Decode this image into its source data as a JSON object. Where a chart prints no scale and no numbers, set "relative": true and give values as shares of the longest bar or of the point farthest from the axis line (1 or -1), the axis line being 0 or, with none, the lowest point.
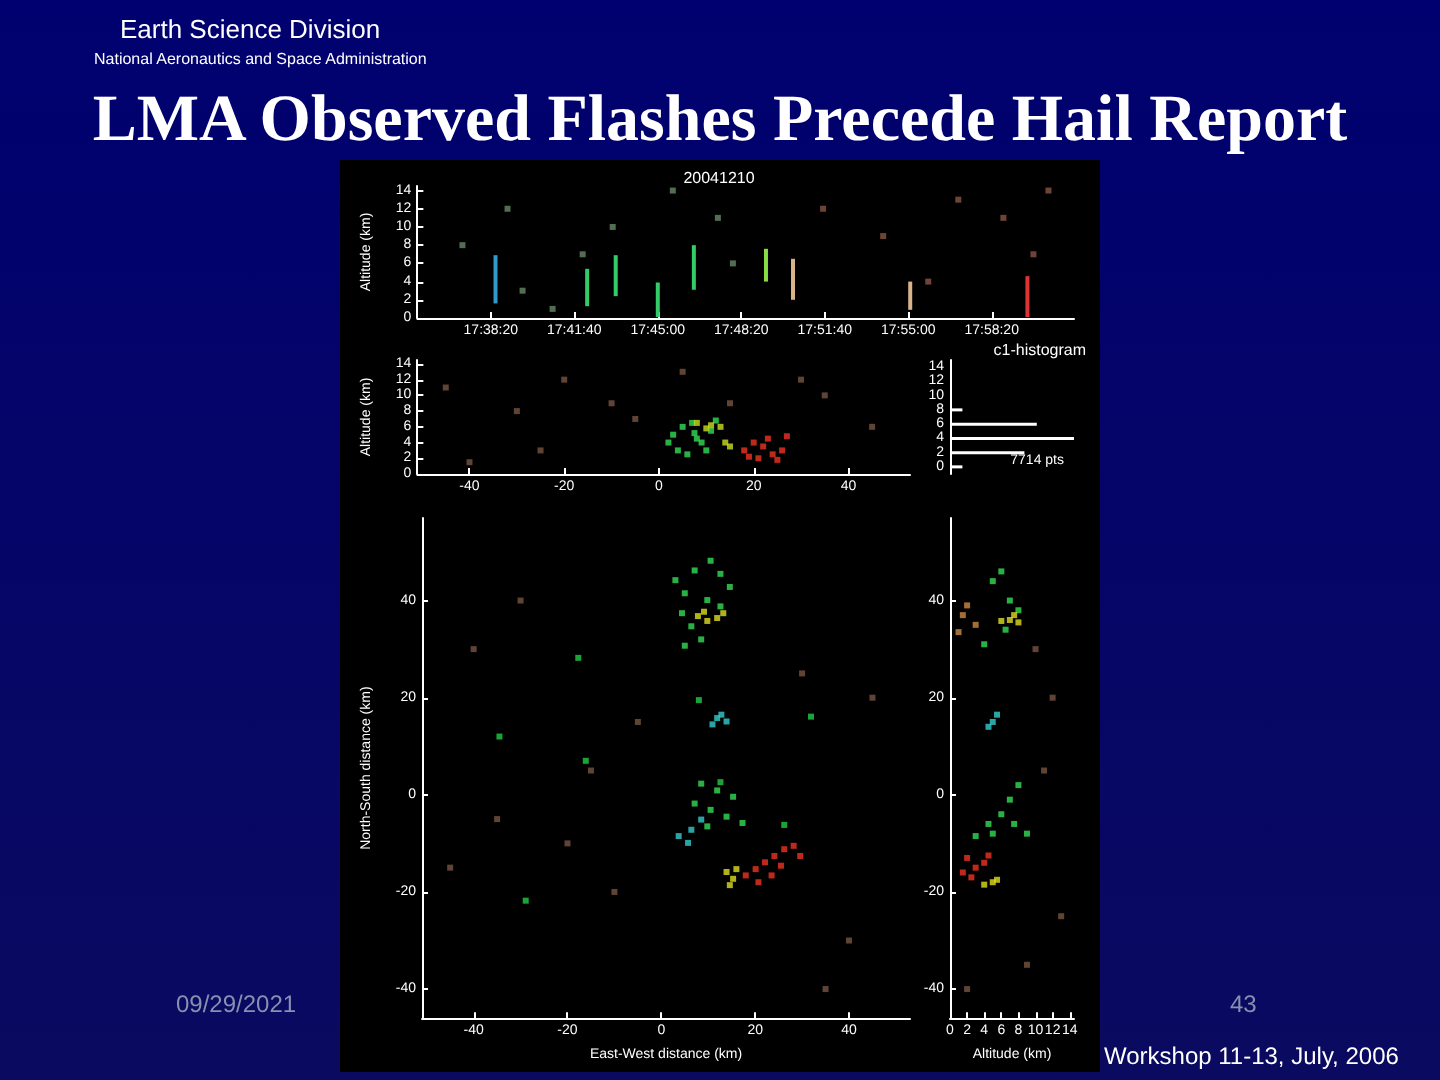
{
  "chart_data": [
    {
      "type": "other",
      "title": "LMA Observed Flashes Precede Hail Report",
      "annotations": [
        "Earth Science Division",
        "National Aeronautics and Space Administration",
        "09/29/2021",
        "43",
        "Workshop 11-13, July, 2006"
      ]
    },
    {
      "type": "scatter",
      "title": "20041210",
      "ylabel": "Altitude (km)",
      "xlim": [
        17.59,
        18.027
      ],
      "ylim": [
        0,
        14.5
      ],
      "xticks": [
        {
          "value": 17.63889,
          "label": "17:38:20"
        },
        {
          "value": 17.69444,
          "label": "17:41:40"
        },
        {
          "value": 17.75,
          "label": "17:45:00"
        },
        {
          "value": 17.80556,
          "label": "17:48:20"
        },
        {
          "value": 17.86111,
          "label": "17:51:40"
        },
        {
          "value": 17.91667,
          "label": "17:55:00"
        },
        {
          "value": 17.97222,
          "label": "17:58:20"
        }
      ],
      "yticks": [
        0,
        2,
        4,
        6,
        8,
        10,
        12,
        14
      ],
      "marker": "square",
      "annotations": [
        "c1-histogram"
      ],
      "series": [
        {
          "type": "bar",
          "x": [
            17.642,
            17.703,
            17.722,
            17.75,
            17.774,
            17.822,
            17.84,
            17.918,
            17.996
          ],
          "base": [
            1.6,
            1.3,
            2.4,
            0.1,
            3.1,
            4.0,
            2.0,
            0.9,
            0.1
          ],
          "values": [
            5.3,
            4.1,
            4.5,
            3.8,
            4.9,
            3.6,
            4.5,
            3.1,
            4.5
          ],
          "colors": [
            "#3399cc",
            "#33cc66",
            "#33cc66",
            "#33cc66",
            "#33cc66",
            "#88dd44",
            "#d9b38c",
            "#d9b38c",
            "#dd3333"
          ]
        },
        {
          "type": "scatter",
          "color": "#668866",
          "x": [
            17.62,
            17.65,
            17.68,
            17.72,
            17.76,
            17.8,
            17.66,
            17.7,
            17.79
          ],
          "values": [
            8,
            12,
            1,
            10,
            14,
            6,
            3,
            7,
            11
          ]
        },
        {
          "type": "scatter",
          "color": "#885544",
          "x": [
            17.86,
            17.9,
            17.95,
            17.98,
            18.0,
            17.93,
            18.01
          ],
          "values": [
            12,
            9,
            13,
            11,
            7,
            4,
            14
          ]
        }
      ]
    },
    {
      "type": "scatter",
      "ylabel": "Altitude (km)",
      "xlim": [
        -51,
        53
      ],
      "ylim": [
        0,
        14.5
      ],
      "xticks": [
        -40,
        -20,
        0,
        20,
        40
      ],
      "yticks": [
        0,
        2,
        4,
        6,
        8,
        10,
        12,
        14
      ],
      "marker": "square",
      "series": [
        {
          "color": "#775544",
          "x": [
            -40,
            -30,
            -20,
            -10,
            -25,
            35,
            45,
            -45,
            5,
            30,
            -5,
            15
          ],
          "values": [
            1.5,
            8,
            12,
            9,
            3,
            10,
            6,
            11,
            13,
            12,
            7,
            9
          ]
        },
        {
          "color": "#33dd55",
          "x": [
            3,
            5,
            7,
            9,
            11,
            4,
            6,
            8,
            12,
            10,
            2,
            7.5
          ],
          "values": [
            5,
            6,
            6.5,
            4,
            5.5,
            3,
            2.5,
            4.5,
            6.8,
            3,
            4,
            5.2
          ]
        },
        {
          "color": "#ccdd22",
          "x": [
            8,
            11,
            13,
            14,
            15,
            10
          ],
          "values": [
            6.5,
            6.2,
            6,
            4,
            3.5,
            5.8
          ]
        },
        {
          "color": "#ee3322",
          "x": [
            18,
            20,
            22,
            24,
            26,
            21,
            23,
            27,
            19,
            25
          ],
          "values": [
            3,
            4,
            3.5,
            2.5,
            3,
            2,
            4.5,
            4.8,
            2.2,
            1.8
          ]
        }
      ]
    },
    {
      "type": "bar",
      "orientation": "horizontal",
      "relative": true,
      "categories": [
        "14",
        "12",
        "10",
        "8",
        "6",
        "4",
        "2",
        "0"
      ],
      "values": [
        0,
        0,
        0,
        0.1,
        0.7,
        1,
        0.6,
        0.1
      ],
      "color": "#ffffff",
      "annotations": [
        "7714 pts"
      ]
    },
    {
      "type": "scatter",
      "xlabel": "East-West distance (km)",
      "ylabel": "North-South distance (km)",
      "xlim": [
        -51,
        53
      ],
      "ylim": [
        -46,
        57
      ],
      "xticks": [
        -40,
        -20,
        0,
        20,
        40
      ],
      "yticks": [
        -40,
        -20,
        0,
        20,
        40
      ],
      "marker": "square",
      "series": [
        {
          "color": "#775544",
          "x": [
            -40,
            -30,
            -20,
            -10,
            -35,
            40,
            45,
            -45,
            30,
            -5,
            35,
            -15
          ],
          "values": [
            30,
            40,
            -10,
            -20,
            -5,
            -30,
            20,
            -15,
            25,
            15,
            -40,
            5
          ]
        },
        {
          "color": "#33dd55",
          "x": [
            3,
            5,
            7.1,
            10.5,
            12.6,
            14.6,
            4.4,
            6.4,
            8.5,
            5,
            9.8,
            12.6,
            8.5,
            11.9,
            15.3,
            10.5,
            13.9,
            17.3,
            7.1,
            9.8
          ],
          "values": [
            44.2,
            41.5,
            46.2,
            48.2,
            45.5,
            42.8,
            37.4,
            34.7,
            32,
            30.7,
            40.1,
            38.8,
            2.3,
            0.9,
            -0.4,
            -3.1,
            -4.5,
            -5.8,
            -1.8,
            -6.5
          ]
        },
        {
          "color": "#dddd22",
          "x": [
            7.8,
            9.8,
            11.9,
            13.2,
            9.1,
            13.9,
            15.3,
            14.6,
            16
          ],
          "values": [
            36.8,
            35.8,
            36.4,
            37.4,
            37.7,
            -15.9,
            -17.3,
            -18.6,
            -15.3
          ]
        },
        {
          "color": "#33cccc",
          "x": [
            11.9,
            12.8,
            13.9,
            10.9,
            3.7,
            6.4,
            8.5,
            5.7
          ],
          "values": [
            15.8,
            16.5,
            15.1,
            14.5,
            -8.5,
            -7.2,
            -5.1,
            -9.9
          ]
        },
        {
          "color": "#ee3322",
          "x": [
            18,
            20.1,
            22.1,
            24.1,
            26.2,
            28.2,
            20.7,
            23.5,
            25.5,
            29.6
          ],
          "values": [
            -16.6,
            -15.3,
            -13.9,
            -12.6,
            -11.2,
            -10.5,
            -18,
            -16.6,
            -14.6,
            -12.6
          ]
        },
        {
          "color": "#22cc44",
          "x": [
            -28.9,
            8,
            31.9,
            -34.5,
            -16.1,
            12.6,
            26.2,
            -17.7
          ],
          "values": [
            -21.8,
            19.5,
            16.1,
            12,
            7,
            2.6,
            -6.2,
            28.2
          ]
        }
      ]
    },
    {
      "type": "scatter",
      "xlabel": "Altitude (km)",
      "xlim": [
        0,
        14.5
      ],
      "ylim": [
        -46,
        57
      ],
      "xticks": [
        0,
        2,
        4,
        6,
        8,
        10,
        12,
        14
      ],
      "yticks": [
        -40,
        -20,
        0,
        20,
        40
      ],
      "marker": "square",
      "series": [
        {
          "color": "#775544",
          "x": [
            10,
            12,
            13,
            9,
            11,
            2
          ],
          "values": [
            30,
            20,
            -25,
            -35,
            5,
            -40
          ]
        },
        {
          "color": "#33dd55",
          "x": [
            5,
            6,
            7,
            6.5,
            4,
            8,
            5,
            6,
            7,
            8,
            7.5,
            3,
            9,
            4.5
          ],
          "values": [
            44,
            46,
            40,
            34,
            31,
            38,
            -8,
            -4,
            -1,
            2,
            -6,
            -8.5,
            -8,
            -6
          ]
        },
        {
          "color": "#dddd22",
          "x": [
            7.5,
            8,
            7,
            6,
            4,
            5,
            5.5
          ],
          "values": [
            37,
            35.5,
            36,
            35.8,
            -18.5,
            -18,
            -17.5
          ]
        },
        {
          "color": "#cc8844",
          "x": [
            1.5,
            2,
            3,
            1
          ],
          "values": [
            37,
            39,
            35,
            33.5
          ]
        },
        {
          "color": "#33cccc",
          "x": [
            5,
            5.5,
            4.5
          ],
          "values": [
            15,
            16.5,
            14
          ]
        },
        {
          "color": "#ee3322",
          "x": [
            2,
            3,
            4,
            2.5,
            1.5,
            4.5
          ],
          "values": [
            -13,
            -15,
            -14,
            -17,
            -16,
            -12.5
          ]
        }
      ]
    }
  ]
}
